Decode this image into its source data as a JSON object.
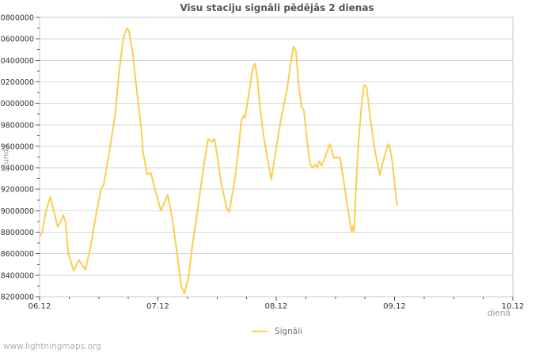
{
  "page": {
    "watermark": "www.lightningmaps.org"
  },
  "chart_data": {
    "type": "line",
    "title": "Visu staciju signāli pēdējās 2 dienas",
    "xlabel": "dienā",
    "ylabel": "stundā",
    "grid": "horizontal-only",
    "legend_position": "bottom-center",
    "line_color": "#fbce51",
    "grid_color": "#d6d6d6",
    "frame_color": "#c9c9c9",
    "tick_color": "#555555",
    "tick_label_color": "#333333",
    "x_axis": {
      "tick_labels": [
        "06.12",
        "07.12",
        "08.12",
        "09.12",
        "10.12"
      ],
      "major_positions_days": [
        0,
        1,
        2,
        3,
        4
      ],
      "minor_step_days": 0.25,
      "range_days": [
        0,
        4
      ]
    },
    "y_axis": {
      "min": 8200000,
      "max": 10800000,
      "major_step": 200000,
      "minor_step": 100000
    },
    "series": [
      {
        "name": "Signāli",
        "color": "#fbce51",
        "points_hours_value": [
          [
            0.0,
            8760000
          ],
          [
            0.5,
            8800000
          ],
          [
            1.3,
            9000000
          ],
          [
            2.2,
            9130000
          ],
          [
            2.9,
            8990000
          ],
          [
            3.7,
            8850000
          ],
          [
            4.3,
            8900000
          ],
          [
            4.8,
            8960000
          ],
          [
            5.3,
            8890000
          ],
          [
            5.8,
            8610000
          ],
          [
            6.9,
            8440000
          ],
          [
            8.0,
            8540000
          ],
          [
            9.3,
            8450000
          ],
          [
            10.4,
            8680000
          ],
          [
            11.4,
            8950000
          ],
          [
            12.5,
            9210000
          ],
          [
            13.0,
            9240000
          ],
          [
            14.1,
            9540000
          ],
          [
            15.3,
            9880000
          ],
          [
            16.2,
            10320000
          ],
          [
            17.0,
            10610000
          ],
          [
            17.7,
            10700000
          ],
          [
            18.1,
            10680000
          ],
          [
            18.9,
            10470000
          ],
          [
            19.7,
            10130000
          ],
          [
            20.6,
            9780000
          ],
          [
            21.0,
            9540000
          ],
          [
            21.8,
            9340000
          ],
          [
            22.6,
            9350000
          ],
          [
            23.4,
            9200000
          ],
          [
            24.6,
            9000000
          ],
          [
            26.0,
            9150000
          ],
          [
            27.0,
            8900000
          ],
          [
            27.9,
            8600000
          ],
          [
            28.7,
            8300000
          ],
          [
            29.4,
            8230000
          ],
          [
            30.2,
            8380000
          ],
          [
            31.0,
            8680000
          ],
          [
            31.8,
            8920000
          ],
          [
            32.6,
            9190000
          ],
          [
            33.4,
            9450000
          ],
          [
            34.2,
            9670000
          ],
          [
            35.0,
            9640000
          ],
          [
            35.5,
            9670000
          ],
          [
            36.3,
            9430000
          ],
          [
            36.9,
            9240000
          ],
          [
            38.0,
            9020000
          ],
          [
            38.5,
            8990000
          ],
          [
            39.7,
            9320000
          ],
          [
            40.5,
            9640000
          ],
          [
            40.9,
            9830000
          ],
          [
            41.4,
            9890000
          ],
          [
            41.7,
            9870000
          ],
          [
            42.5,
            10100000
          ],
          [
            43.2,
            10320000
          ],
          [
            43.7,
            10370000
          ],
          [
            44.2,
            10230000
          ],
          [
            44.6,
            10010000
          ],
          [
            45.4,
            9710000
          ],
          [
            46.2,
            9490000
          ],
          [
            47.0,
            9290000
          ],
          [
            48.2,
            9640000
          ],
          [
            49.0,
            9860000
          ],
          [
            50.2,
            10130000
          ],
          [
            51.1,
            10420000
          ],
          [
            51.5,
            10530000
          ],
          [
            52.0,
            10490000
          ],
          [
            52.5,
            10200000
          ],
          [
            53.1,
            9970000
          ],
          [
            53.6,
            9940000
          ],
          [
            54.3,
            9640000
          ],
          [
            54.9,
            9430000
          ],
          [
            55.4,
            9400000
          ],
          [
            55.9,
            9430000
          ],
          [
            56.3,
            9400000
          ],
          [
            56.7,
            9460000
          ],
          [
            57.2,
            9420000
          ],
          [
            57.5,
            9450000
          ],
          [
            58.9,
            9620000
          ],
          [
            59.7,
            9490000
          ],
          [
            60.7,
            9500000
          ],
          [
            61.0,
            9480000
          ],
          [
            61.8,
            9240000
          ],
          [
            62.6,
            9000000
          ],
          [
            63.3,
            8800000
          ],
          [
            63.6,
            8860000
          ],
          [
            63.8,
            8810000
          ],
          [
            64.2,
            9240000
          ],
          [
            64.7,
            9640000
          ],
          [
            65.3,
            9980000
          ],
          [
            65.8,
            10170000
          ],
          [
            66.3,
            10160000
          ],
          [
            67.1,
            9860000
          ],
          [
            67.9,
            9590000
          ],
          [
            68.6,
            9430000
          ],
          [
            69.0,
            9330000
          ],
          [
            69.8,
            9480000
          ],
          [
            70.7,
            9620000
          ],
          [
            71.0,
            9600000
          ],
          [
            71.5,
            9470000
          ],
          [
            72.0,
            9270000
          ],
          [
            72.3,
            9120000
          ],
          [
            72.6,
            9050000
          ]
        ]
      }
    ]
  }
}
